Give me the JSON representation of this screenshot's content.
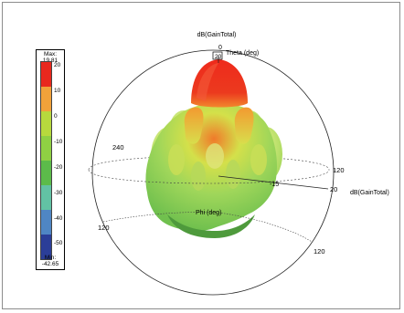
{
  "legend": {
    "max_label": "Max: 19.81",
    "min_label": "Min: -42.65",
    "ticks": [
      "20",
      "10",
      "0",
      "-10",
      "-20",
      "-30",
      "-40",
      "-50"
    ],
    "colors": [
      "#e8281e",
      "#f1a23a",
      "#b7d93d",
      "#8fd043",
      "#5cbb4a",
      "#62c2a4",
      "#4f86c4",
      "#2b3e98"
    ]
  },
  "plot": {
    "quantity_top": "dB(GainTotal)",
    "quantity_right": "dB(GainTotal)",
    "theta_label": "Theta (deg)",
    "phi_label": "Phi (deg)",
    "theta_zero": "0",
    "value_20_top": "20",
    "value_20_right": "20",
    "value_neg15": "-15",
    "phi_240": "240",
    "phi_120_right": "120",
    "phi_120_lower_left": "120",
    "phi_120_lower_right": "120"
  }
}
